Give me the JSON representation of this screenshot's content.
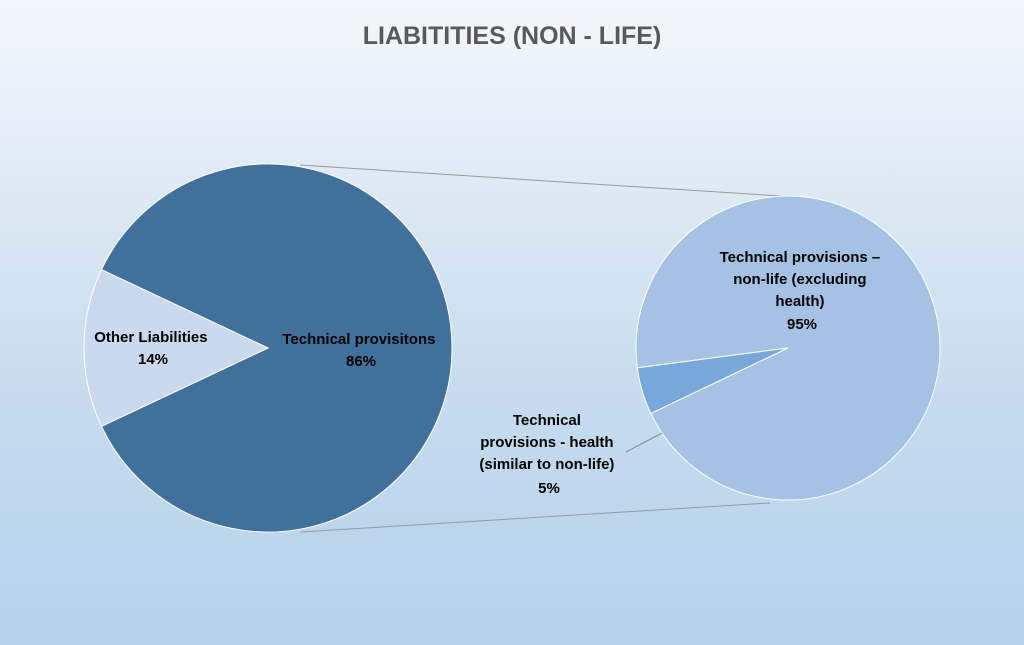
{
  "chart_data": {
    "type": "pie",
    "subtype": "pie-of-pie",
    "title": "LIABITITIES (NON - LIFE)",
    "main_pie": {
      "slices": [
        {
          "name": "Technical provisitons",
          "value": 86,
          "label_value": "86%",
          "color": "#41709c"
        },
        {
          "name": "Other Liabilities",
          "value": 14,
          "label_value": "14%",
          "color": "#cad9ee"
        }
      ]
    },
    "secondary_pie": {
      "breakout_of": "Technical provisitons",
      "slices": [
        {
          "name": "Technical provisions – non-life (excluding health)",
          "label_lines": [
            "Technical provisions –",
            "non-life (excluding",
            "health)"
          ],
          "value": 95,
          "label_value": "95%",
          "color": "#a5c1e3"
        },
        {
          "name": "Technical provisions - health (similar to non-life)",
          "label_lines": [
            "Technical",
            "provisions - health",
            "(similar to non-life)"
          ],
          "value": 5,
          "label_value": "5%",
          "color": "#78a7da"
        }
      ]
    },
    "legend": "none"
  }
}
